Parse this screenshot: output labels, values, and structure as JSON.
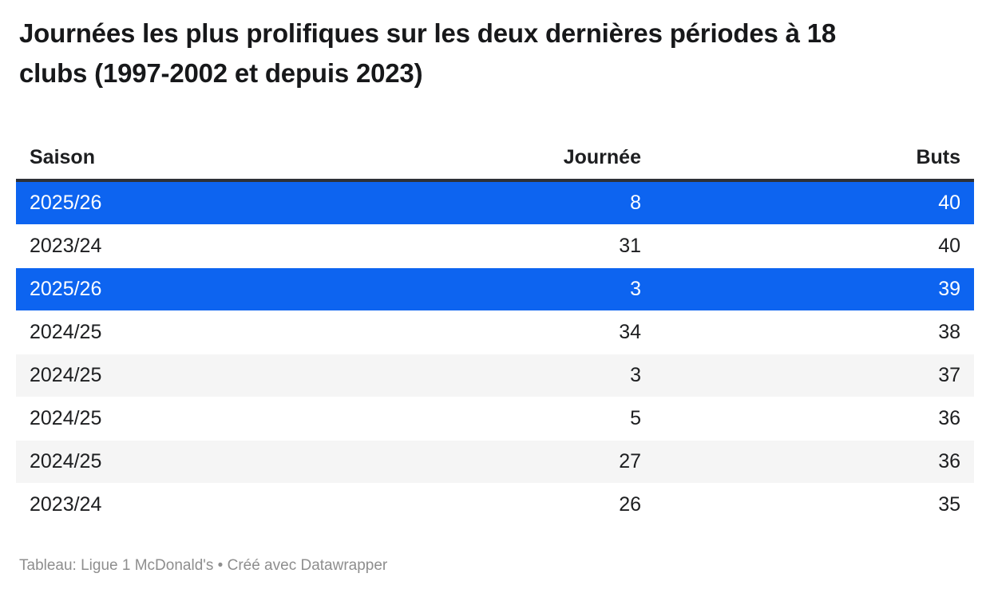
{
  "title": "Journées les plus prolifiques sur les deux dernières périodes à 18 clubs (1997-2002 et depuis 2023)",
  "chart_data": {
    "type": "table",
    "title": "Journées les plus prolifiques sur les deux dernières périodes à 18 clubs (1997-2002 et depuis 2023)",
    "columns": [
      {
        "label": "Saison",
        "align": "left"
      },
      {
        "label": "Journée",
        "align": "right"
      },
      {
        "label": "Buts",
        "align": "right"
      }
    ],
    "rows": [
      {
        "saison": "2025/26",
        "journee": 8,
        "buts": 40,
        "highlight": true
      },
      {
        "saison": "2023/24",
        "journee": 31,
        "buts": 40,
        "highlight": false
      },
      {
        "saison": "2025/26",
        "journee": 3,
        "buts": 39,
        "highlight": true
      },
      {
        "saison": "2024/25",
        "journee": 34,
        "buts": 38,
        "highlight": false
      },
      {
        "saison": "2024/25",
        "journee": 3,
        "buts": 37,
        "highlight": false
      },
      {
        "saison": "2024/25",
        "journee": 5,
        "buts": 36,
        "highlight": false
      },
      {
        "saison": "2024/25",
        "journee": 27,
        "buts": 36,
        "highlight": false
      },
      {
        "saison": "2023/24",
        "journee": 26,
        "buts": 35,
        "highlight": false
      }
    ],
    "highlighted_row_indexes": [
      0,
      2
    ],
    "layout_hints": {
      "zebra_striping": true,
      "header_rule": true
    }
  },
  "footer": {
    "text": "Tableau: Ligue 1 McDonald's • Créé avec Datawrapper"
  },
  "colors": {
    "highlight": "#0d64f0",
    "zebra": "#f5f5f5",
    "header-border": "#2e3138",
    "title-color": "#17181a",
    "text-color": "#1d1e20",
    "footer-color": "#8e8e8e"
  }
}
